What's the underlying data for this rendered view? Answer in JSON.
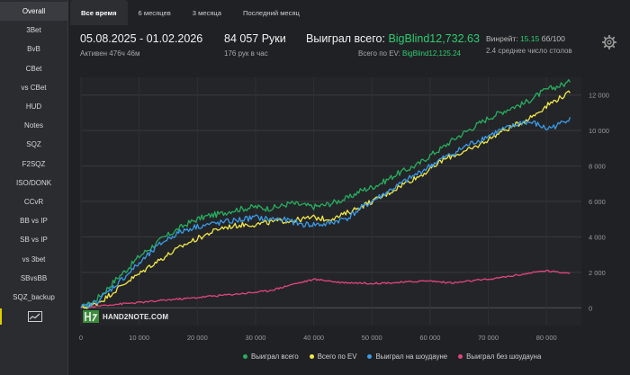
{
  "sidebar": {
    "items": [
      {
        "label": "Overall"
      },
      {
        "label": "3Bet"
      },
      {
        "label": "BvB"
      },
      {
        "label": "CBet"
      },
      {
        "label": "vs CBet"
      },
      {
        "label": "HUD"
      },
      {
        "label": "Notes"
      },
      {
        "label": "SQZ"
      },
      {
        "label": "F2SQZ"
      },
      {
        "label": "ISO/DONK"
      },
      {
        "label": "CCvR"
      },
      {
        "label": "BB vs IP"
      },
      {
        "label": "SB vs IP"
      },
      {
        "label": "vs 3bet"
      },
      {
        "label": "SBvsBB"
      },
      {
        "label": "SQZ_backup"
      }
    ],
    "chart_icon": "line-chart-icon"
  },
  "tabs": [
    {
      "label": "Все время",
      "active": true
    },
    {
      "label": "6 месяцев"
    },
    {
      "label": "3 месяца"
    },
    {
      "label": "Последний месяц"
    }
  ],
  "header": {
    "date_range": "05.08.2025 - 01.02.2026",
    "active_time": "Активен 476ч 46м",
    "hands": "84 057 Руки",
    "hands_per_hour": "176 рук в час",
    "won_total_label": "Выиграл всего:",
    "won_total_value": "BigBlind12,732.63",
    "ev_total_label": "Всего по EV:",
    "ev_total_value": "BigBlind12,125.24",
    "winrate_label": "Винрейт:",
    "winrate_value": "15.15",
    "winrate_unit": "бб/100",
    "avg_tables": "2.4 среднее число столов",
    "settings_icon": "gear-icon"
  },
  "colors": {
    "won": "#27ae60",
    "ev": "#f1e84a",
    "showdown": "#3a9be8",
    "non_showdown": "#e0467a",
    "accent_green": "#2ecc71"
  },
  "logo": {
    "text": "HAND2NOTE.COM"
  },
  "chart_data": {
    "type": "line",
    "x_ticks": [
      "0",
      "10 000",
      "20 000",
      "30 000",
      "40 000",
      "50 000",
      "60 000",
      "70 000",
      "80 000"
    ],
    "y_ticks": [
      "0",
      "2 000",
      "4 000",
      "6 000",
      "8 000",
      "10 000",
      "12 000"
    ],
    "xlim": [
      0,
      84057
    ],
    "ylim": [
      -1000,
      13000
    ],
    "grid": true,
    "legend_position": "bottom-right",
    "series": [
      {
        "name": "Выиграл всего",
        "color": "#27ae60",
        "x": [
          0,
          2000,
          4000,
          6000,
          8000,
          10000,
          12000,
          14000,
          16000,
          18000,
          20000,
          22000,
          24000,
          26000,
          28000,
          30000,
          32000,
          34000,
          36000,
          38000,
          40000,
          42000,
          44000,
          46000,
          48000,
          50000,
          52000,
          54000,
          56000,
          58000,
          60000,
          62000,
          64000,
          66000,
          68000,
          70000,
          72000,
          74000,
          76000,
          78000,
          80000,
          82000,
          84057
        ],
        "y": [
          0,
          300,
          900,
          1600,
          2200,
          2900,
          3400,
          3900,
          4300,
          4700,
          5000,
          5200,
          5300,
          5500,
          5600,
          5700,
          5600,
          5700,
          5900,
          5800,
          5700,
          5800,
          6000,
          6200,
          6600,
          6800,
          7100,
          7500,
          7800,
          8100,
          8600,
          9000,
          9500,
          9900,
          10300,
          10700,
          11000,
          11300,
          11500,
          11900,
          12300,
          12500,
          12733
        ]
      },
      {
        "name": "Всего по EV",
        "color": "#f1e84a",
        "x": [
          0,
          2000,
          4000,
          6000,
          8000,
          10000,
          12000,
          14000,
          16000,
          18000,
          20000,
          22000,
          24000,
          26000,
          28000,
          30000,
          32000,
          34000,
          36000,
          38000,
          40000,
          42000,
          44000,
          46000,
          48000,
          50000,
          52000,
          54000,
          56000,
          58000,
          60000,
          62000,
          64000,
          66000,
          68000,
          70000,
          72000,
          74000,
          76000,
          78000,
          80000,
          82000,
          84057
        ],
        "y": [
          0,
          150,
          500,
          1000,
          1500,
          1900,
          2400,
          2800,
          3200,
          3600,
          3900,
          4200,
          4500,
          4600,
          4700,
          4700,
          4800,
          4900,
          4900,
          5000,
          5100,
          5000,
          5100,
          5400,
          5700,
          6000,
          6300,
          6700,
          7100,
          7400,
          7800,
          8300,
          8600,
          8800,
          9100,
          9500,
          9900,
          10200,
          10500,
          10900,
          11400,
          11800,
          12125
        ]
      },
      {
        "name": "Выиграл на шоудауне",
        "color": "#3a9be8",
        "x": [
          0,
          2000,
          4000,
          6000,
          8000,
          10000,
          12000,
          14000,
          16000,
          18000,
          20000,
          22000,
          24000,
          26000,
          28000,
          30000,
          32000,
          34000,
          36000,
          38000,
          40000,
          42000,
          44000,
          46000,
          48000,
          50000,
          52000,
          54000,
          56000,
          58000,
          60000,
          62000,
          64000,
          66000,
          68000,
          70000,
          72000,
          74000,
          76000,
          78000,
          80000,
          82000,
          84057
        ],
        "y": [
          0,
          200,
          700,
          1300,
          1900,
          2500,
          3100,
          3700,
          4100,
          4400,
          4600,
          4700,
          4800,
          4900,
          5000,
          5100,
          5000,
          5000,
          4900,
          4700,
          4700,
          4700,
          4900,
          5100,
          5600,
          6000,
          6400,
          6800,
          7200,
          7600,
          8000,
          8400,
          8700,
          9100,
          9400,
          9700,
          10000,
          10200,
          10500,
          10400,
          10100,
          10300,
          10750
        ]
      },
      {
        "name": "Выиграл без шоудауна",
        "color": "#e0467a",
        "x": [
          0,
          2000,
          4000,
          6000,
          8000,
          10000,
          12000,
          14000,
          16000,
          18000,
          20000,
          22000,
          24000,
          26000,
          28000,
          30000,
          32000,
          34000,
          36000,
          38000,
          40000,
          42000,
          44000,
          46000,
          48000,
          50000,
          52000,
          54000,
          56000,
          58000,
          60000,
          62000,
          64000,
          66000,
          68000,
          70000,
          72000,
          74000,
          76000,
          78000,
          80000,
          82000,
          84057
        ],
        "y": [
          0,
          50,
          150,
          200,
          250,
          300,
          350,
          420,
          480,
          520,
          580,
          650,
          700,
          760,
          820,
          880,
          950,
          1100,
          1300,
          1450,
          1600,
          1550,
          1450,
          1420,
          1400,
          1380,
          1400,
          1420,
          1450,
          1500,
          1520,
          1450,
          1400,
          1480,
          1550,
          1600,
          1700,
          1800,
          1900,
          2000,
          2100,
          2000,
          1980
        ]
      }
    ]
  }
}
